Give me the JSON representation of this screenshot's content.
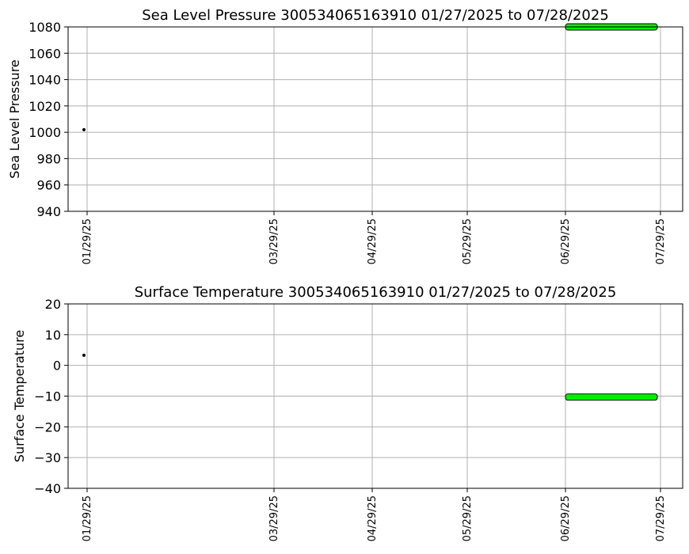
{
  "chart_data": [
    {
      "type": "scatter",
      "title": "Sea Level Pressure 300534065163910  01/27/2025 to 07/28/2025",
      "xlabel": "",
      "ylabel": "Sea Level Pressure",
      "ylim": [
        940,
        1080
      ],
      "yticks": [
        940,
        960,
        980,
        1000,
        1020,
        1040,
        1060,
        1080
      ],
      "xlim": [
        "2025-01-23",
        "2025-08-05"
      ],
      "xticks": [
        {
          "date": "2025-01-29",
          "label": "01/29/25"
        },
        {
          "date": "2025-03-29",
          "label": "03/29/25"
        },
        {
          "date": "2025-04-29",
          "label": "04/29/25"
        },
        {
          "date": "2025-05-29",
          "label": "05/29/25"
        },
        {
          "date": "2025-06-29",
          "label": "06/29/25"
        },
        {
          "date": "2025-07-29",
          "label": "07/29/25"
        }
      ],
      "grid": true,
      "series": [
        {
          "color": "#000000",
          "points": [
            {
              "x": "2025-01-28",
              "y": 1002
            }
          ]
        },
        {
          "color": "#00ee00",
          "band": {
            "x_start": "2025-06-29",
            "x_end": "2025-07-28",
            "y": 1080
          }
        }
      ]
    },
    {
      "type": "scatter",
      "title": "Surface Temperature 300534065163910  01/27/2025 to 07/28/2025",
      "xlabel": "",
      "ylabel": "Surface Temperature",
      "ylim": [
        -40,
        20
      ],
      "yticks": [
        -40,
        -30,
        -20,
        -10,
        0,
        10,
        20
      ],
      "xlim": [
        "2025-01-23",
        "2025-08-05"
      ],
      "xticks": [
        {
          "date": "2025-01-29",
          "label": "01/29/25"
        },
        {
          "date": "2025-03-29",
          "label": "03/29/25"
        },
        {
          "date": "2025-04-29",
          "label": "04/29/25"
        },
        {
          "date": "2025-05-29",
          "label": "05/29/25"
        },
        {
          "date": "2025-06-29",
          "label": "06/29/25"
        },
        {
          "date": "2025-07-29",
          "label": "07/29/25"
        }
      ],
      "grid": true,
      "series": [
        {
          "color": "#000000",
          "points": [
            {
              "x": "2025-01-28",
              "y": 3.3
            }
          ]
        },
        {
          "color": "#00ee00",
          "band": {
            "x_start": "2025-06-29",
            "x_end": "2025-07-28",
            "y": -10.3
          }
        }
      ]
    }
  ]
}
